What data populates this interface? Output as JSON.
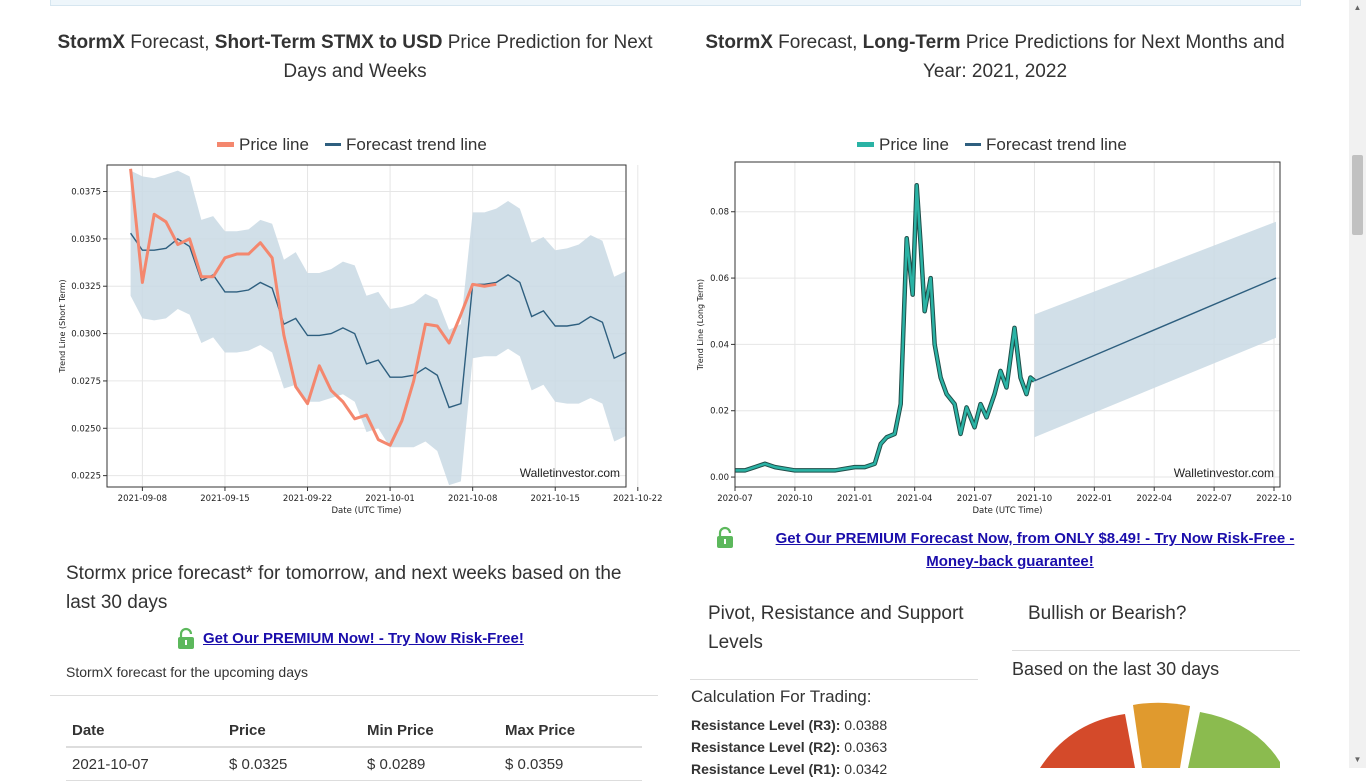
{
  "short_section": {
    "title_b1": "StormX",
    "title_t1": " Forecast, ",
    "title_b2": "Short-Term STMX to USD",
    "title_t2": " Price Prediction for Next Days and Weeks"
  },
  "long_section": {
    "title_b1": "StormX",
    "title_t1": " Forecast, ",
    "title_b2": "Long-Term",
    "title_t2": " Price Predictions for Next Months and Year: 2021, 2022"
  },
  "colors": {
    "price": "#f4876e",
    "forecast": "#2e5f7f",
    "band": "#c9d9e4",
    "long_price": "#2ab3a5"
  },
  "chart_data": [
    {
      "type": "line",
      "title": "",
      "legend": [
        "Price line",
        "Forecast trend line"
      ],
      "xlabel": "Date (UTC Time)",
      "ylabel": "Trend Line (Short Term)",
      "watermark": "Walletinvestor.com",
      "ylim": [
        0.0219,
        0.0389
      ],
      "xlim": [
        0,
        44
      ],
      "yticks": [
        0.0225,
        0.025,
        0.0275,
        0.03,
        0.0325,
        0.035,
        0.0375
      ],
      "ytick_labels": [
        "0.0225",
        "0.0250",
        "0.0275",
        "0.0300",
        "0.0325",
        "0.0350",
        "0.0375"
      ],
      "xticks": [
        3,
        10,
        17,
        24,
        31,
        38,
        45
      ],
      "xtick_labels": [
        "2021-09-08",
        "2021-09-15",
        "2021-09-22",
        "2021-10-01",
        "2021-10-08",
        "2021-10-15",
        "2021-10-22"
      ],
      "price": {
        "x": [
          2,
          3,
          4,
          5,
          6,
          7,
          8,
          9,
          10,
          11,
          12,
          13,
          14,
          15,
          16,
          17,
          18,
          19,
          20,
          21,
          22,
          23,
          24,
          25,
          26,
          27,
          28,
          29,
          30,
          31,
          32,
          33
        ],
        "y": [
          0.0387,
          0.0327,
          0.0363,
          0.0359,
          0.0347,
          0.035,
          0.033,
          0.033,
          0.034,
          0.0342,
          0.0342,
          0.0348,
          0.034,
          0.0299,
          0.0272,
          0.0263,
          0.0283,
          0.027,
          0.0264,
          0.0255,
          0.0257,
          0.0244,
          0.0241,
          0.0254,
          0.0275,
          0.0305,
          0.0304,
          0.0295,
          0.031,
          0.0326,
          0.0325,
          0.0326
        ]
      },
      "forecast": {
        "x": [
          2,
          3,
          4,
          5,
          6,
          7,
          8,
          9,
          10,
          11,
          12,
          13,
          14,
          15,
          16,
          17,
          18,
          19,
          20,
          21,
          22,
          23,
          24,
          25,
          26,
          27,
          28,
          29,
          30,
          31,
          32,
          33,
          34,
          35,
          36,
          37,
          38,
          39,
          40,
          41,
          42,
          43,
          44
        ],
        "y": [
          0.0353,
          0.0344,
          0.0344,
          0.0345,
          0.035,
          0.0346,
          0.0328,
          0.0331,
          0.0322,
          0.0322,
          0.0323,
          0.0327,
          0.0324,
          0.0305,
          0.0308,
          0.0299,
          0.0299,
          0.03,
          0.0303,
          0.03,
          0.0284,
          0.0286,
          0.0277,
          0.0277,
          0.0278,
          0.0282,
          0.0278,
          0.0261,
          0.0263,
          0.0326,
          0.0326,
          0.0327,
          0.0331,
          0.0327,
          0.0309,
          0.0312,
          0.0304,
          0.0304,
          0.0305,
          0.0309,
          0.0306,
          0.0287,
          0.029
        ]
      },
      "band_upper": [
        0.0386,
        0.0383,
        0.0382,
        0.0384,
        0.0386,
        0.0383,
        0.036,
        0.0362,
        0.0354,
        0.0354,
        0.0355,
        0.036,
        0.0358,
        0.0339,
        0.0343,
        0.0332,
        0.0332,
        0.0334,
        0.0338,
        0.0336,
        0.032,
        0.0322,
        0.0313,
        0.0314,
        0.0316,
        0.0321,
        0.0318,
        0.0302,
        0.0305,
        0.0364,
        0.0364,
        0.0366,
        0.037,
        0.0366,
        0.0348,
        0.0351,
        0.0344,
        0.0345,
        0.0347,
        0.0352,
        0.0349,
        0.033,
        0.0333
      ],
      "band_lower": [
        0.032,
        0.0308,
        0.0307,
        0.0308,
        0.0313,
        0.031,
        0.0295,
        0.0298,
        0.029,
        0.029,
        0.0291,
        0.0294,
        0.029,
        0.0271,
        0.0273,
        0.0264,
        0.0264,
        0.0266,
        0.0268,
        0.0264,
        0.0248,
        0.025,
        0.024,
        0.024,
        0.024,
        0.0243,
        0.0238,
        0.022,
        0.0222,
        0.0287,
        0.0288,
        0.0288,
        0.0292,
        0.0288,
        0.027,
        0.0273,
        0.0264,
        0.0263,
        0.0263,
        0.0266,
        0.0263,
        0.0243,
        0.0246
      ]
    },
    {
      "type": "line",
      "title": "",
      "legend": [
        "Price line",
        "Forecast trend line"
      ],
      "xlabel": "Date (UTC Time)",
      "ylabel": "Trend Line (Long Term)",
      "watermark": "Walletinvestor.com",
      "ylim": [
        -0.003,
        0.095
      ],
      "xlim": [
        0,
        27.3
      ],
      "yticks": [
        0.0,
        0.02,
        0.04,
        0.06,
        0.08
      ],
      "ytick_labels": [
        "0.00",
        "0.02",
        "0.04",
        "0.06",
        "0.08"
      ],
      "xticks": [
        0,
        3,
        6,
        9,
        12,
        15,
        18,
        21,
        24,
        27
      ],
      "xtick_labels": [
        "2020-07",
        "2020-10",
        "2021-01",
        "2021-04",
        "2021-07",
        "2021-10",
        "2022-01",
        "2022-04",
        "2022-07",
        "2022-10"
      ],
      "price": {
        "x": [
          0,
          0.5,
          1,
          1.5,
          2,
          3,
          4,
          5,
          6,
          6.5,
          7,
          7.3,
          7.6,
          8,
          8.3,
          8.6,
          8.9,
          9.1,
          9.3,
          9.5,
          9.8,
          10,
          10.3,
          10.6,
          11,
          11.3,
          11.6,
          12,
          12.3,
          12.6,
          13,
          13.3,
          13.6,
          14,
          14.3,
          14.6,
          14.8,
          15
        ],
        "y": [
          0.002,
          0.002,
          0.003,
          0.004,
          0.003,
          0.002,
          0.002,
          0.002,
          0.003,
          0.003,
          0.004,
          0.01,
          0.012,
          0.013,
          0.022,
          0.072,
          0.055,
          0.088,
          0.07,
          0.05,
          0.06,
          0.04,
          0.03,
          0.025,
          0.022,
          0.013,
          0.021,
          0.015,
          0.022,
          0.018,
          0.025,
          0.032,
          0.027,
          0.045,
          0.03,
          0.025,
          0.03,
          0.029
        ]
      },
      "forecast": {
        "x": [
          15,
          27.1
        ],
        "y": [
          0.029,
          0.06
        ]
      },
      "band_upper_end": [
        0.049,
        0.077
      ],
      "band_lower_end": [
        0.012,
        0.042
      ]
    }
  ],
  "premium_long": {
    "line1": "Get Our PREMIUM Forecast Now, from ONLY $8.49! - Try Now Risk-Free -",
    "line2": "Money-back guarantee!"
  },
  "short_text": {
    "heading": "Stormx price forecast* for tomorrow, and next weeks based on the last 30 days",
    "premium": "Get Our PREMIUM Now! - Try Now Risk-Free!",
    "upcoming": "StormX forecast for the upcoming days"
  },
  "forecast_table": {
    "headers": [
      "Date",
      "Price",
      "Min Price",
      "Max Price"
    ],
    "rows": [
      [
        "2021-10-07",
        "$ 0.0325",
        "$ 0.0289",
        "$ 0.0359"
      ]
    ]
  },
  "pivot": {
    "title": "Pivot, Resistance and Support Levels",
    "calc_label": "Calculation For Trading:",
    "levels": [
      {
        "label": "Resistance Level (R3):",
        "value": "0.0388"
      },
      {
        "label": "Resistance Level (R2):",
        "value": "0.0363"
      },
      {
        "label": "Resistance Level (R1):",
        "value": "0.0342"
      }
    ]
  },
  "bullish": {
    "title": "Bullish or Bearish?",
    "subtitle": "Based on the last 30 days",
    "gauge_colors": [
      "#d44a2a",
      "#e09a2e",
      "#8bbb4f"
    ]
  }
}
